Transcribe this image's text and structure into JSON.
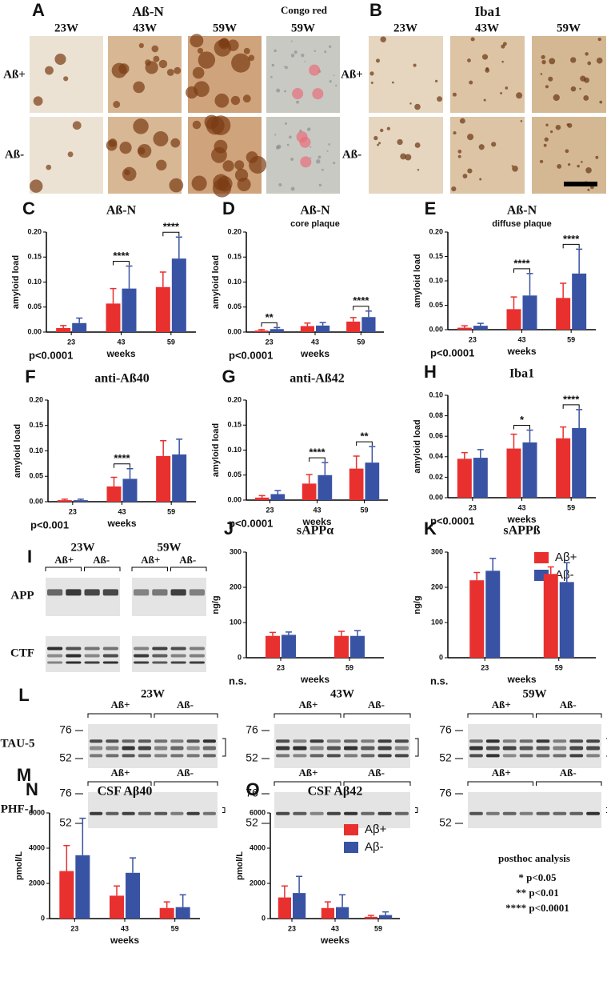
{
  "images": {
    "A": {
      "letter": "A",
      "title": "Aß-N",
      "extra": "Congo red",
      "columns": [
        "23W",
        "43W",
        "59W",
        "59W"
      ],
      "rows": [
        "Aß+",
        "Aß-"
      ]
    },
    "B": {
      "letter": "B",
      "title": "Iba1",
      "columns": [
        "23W",
        "43W",
        "59W"
      ],
      "rows": [
        "Aß+",
        "Aß-"
      ]
    },
    "I": {
      "letter": "I",
      "groups": [
        {
          "label": "23W",
          "sub": [
            "Aß+",
            "Aß-"
          ]
        },
        {
          "label": "59W",
          "sub": [
            "Aß+",
            "Aß-"
          ]
        }
      ],
      "rows": [
        "APP",
        "CTF"
      ]
    },
    "L": {
      "letter": "L",
      "row": "TAU-5",
      "blots": [
        {
          "label": "23W",
          "groups": [
            "Aß+",
            "Aß-"
          ],
          "markers": [
            "76",
            "52"
          ]
        },
        {
          "label": "43W",
          "groups": [
            "Aß+",
            "Aß-"
          ],
          "markers": [
            "76",
            "52"
          ]
        },
        {
          "label": "59W",
          "groups": [
            "Aß+",
            "Aß-"
          ],
          "markers": [
            "76",
            "52"
          ]
        }
      ]
    },
    "M": {
      "letter": "M",
      "row": "PHF-1",
      "blots": [
        {
          "groups": [
            "Aß+",
            "Aß-"
          ],
          "markers": [
            "76",
            "52"
          ]
        },
        {
          "groups": [
            "Aß+",
            "Aß-"
          ],
          "markers": [
            "76",
            "52"
          ]
        },
        {
          "groups": [
            "Aß+",
            "Aß-"
          ],
          "markers": [
            "76",
            "52"
          ]
        }
      ]
    }
  },
  "posthoc": {
    "title": "posthoc analysis",
    "lines": [
      "* p<0.05",
      "** p<0.01",
      "**** p<0.0001"
    ]
  },
  "chart_data": [
    {
      "type": "bar",
      "panel": "C",
      "title": "Aß-N",
      "ylabel": "amyloid load",
      "xlabel": "weeks",
      "note": "p<0.0001",
      "categories": [
        "23",
        "43",
        "59"
      ],
      "series": [
        {
          "name": "Aß+",
          "color": "#e8302f",
          "values": [
            0.008,
            0.057,
            0.09
          ],
          "errors": [
            0.005,
            0.03,
            0.03
          ]
        },
        {
          "name": "Aß-",
          "color": "#3953a4",
          "values": [
            0.018,
            0.087,
            0.147
          ],
          "errors": [
            0.01,
            0.045,
            0.043
          ]
        }
      ],
      "annotations": [
        {
          "x": "43",
          "text": "****"
        },
        {
          "x": "59",
          "text": "****"
        }
      ],
      "ylim": [
        0,
        0.2
      ],
      "yticks": [
        {
          "value": 0,
          "label": "0.00"
        },
        {
          "value": 0.05,
          "label": "0.05"
        },
        {
          "value": 0.1,
          "label": "0.10"
        },
        {
          "value": 0.15,
          "label": "0.15"
        },
        {
          "value": 0.2,
          "label": "0.20"
        }
      ]
    },
    {
      "type": "bar",
      "panel": "D",
      "title": "Aß-N",
      "subtitle": "core plaque",
      "ylabel": "amyloid load",
      "xlabel": "weeks",
      "note": "p<0.0001",
      "categories": [
        "23",
        "43",
        "59"
      ],
      "series": [
        {
          "name": "Aß+",
          "color": "#e8302f",
          "values": [
            0.003,
            0.012,
            0.021
          ],
          "errors": [
            0.002,
            0.006,
            0.008
          ]
        },
        {
          "name": "Aß-",
          "color": "#3953a4",
          "values": [
            0.006,
            0.013,
            0.03
          ],
          "errors": [
            0.003,
            0.006,
            0.012
          ]
        }
      ],
      "annotations": [
        {
          "x": "23",
          "text": "**"
        },
        {
          "x": "59",
          "text": "****"
        }
      ],
      "ylim": [
        0,
        0.2
      ],
      "yticks": [
        {
          "value": 0,
          "label": "0.00"
        },
        {
          "value": 0.05,
          "label": "0.05"
        },
        {
          "value": 0.1,
          "label": "0.10"
        },
        {
          "value": 0.15,
          "label": "0.15"
        },
        {
          "value": 0.2,
          "label": "0.20"
        }
      ]
    },
    {
      "type": "bar",
      "panel": "E",
      "title": "Aß-N",
      "subtitle": "diffuse plaque",
      "ylabel": "amyloid load",
      "xlabel": "weeks",
      "note": "p<0.0001",
      "categories": [
        "23",
        "43",
        "59"
      ],
      "series": [
        {
          "name": "Aß+",
          "color": "#e8302f",
          "values": [
            0.004,
            0.042,
            0.065
          ],
          "errors": [
            0.004,
            0.025,
            0.03
          ]
        },
        {
          "name": "Aß-",
          "color": "#3953a4",
          "values": [
            0.008,
            0.07,
            0.115
          ],
          "errors": [
            0.005,
            0.045,
            0.05
          ]
        }
      ],
      "annotations": [
        {
          "x": "43",
          "text": "****"
        },
        {
          "x": "59",
          "text": "****"
        }
      ],
      "ylim": [
        0,
        0.2
      ],
      "yticks": [
        {
          "value": 0,
          "label": "0.00"
        },
        {
          "value": 0.05,
          "label": "0.05"
        },
        {
          "value": 0.1,
          "label": "0.10"
        },
        {
          "value": 0.15,
          "label": "0.15"
        },
        {
          "value": 0.2,
          "label": "0.20"
        }
      ]
    },
    {
      "type": "bar",
      "panel": "F",
      "title": "anti-Aß40",
      "ylabel": "amyloid load",
      "xlabel": "weeks",
      "note": "p<0.001",
      "categories": [
        "23",
        "43",
        "59"
      ],
      "series": [
        {
          "name": "Aß+",
          "color": "#e8302f",
          "values": [
            0.003,
            0.03,
            0.09
          ],
          "errors": [
            0.002,
            0.018,
            0.03
          ]
        },
        {
          "name": "Aß-",
          "color": "#3953a4",
          "values": [
            0.003,
            0.045,
            0.093
          ],
          "errors": [
            0.002,
            0.02,
            0.03
          ]
        }
      ],
      "annotations": [
        {
          "x": "43",
          "text": "****"
        }
      ],
      "ylim": [
        0,
        0.2
      ],
      "yticks": [
        {
          "value": 0,
          "label": "0.00"
        },
        {
          "value": 0.05,
          "label": "0.05"
        },
        {
          "value": 0.1,
          "label": "0.10"
        },
        {
          "value": 0.15,
          "label": "0.15"
        },
        {
          "value": 0.2,
          "label": "0.20"
        }
      ]
    },
    {
      "type": "bar",
      "panel": "G",
      "title": "anti-Aß42",
      "ylabel": "amyloid load",
      "xlabel": "weeks",
      "note": "p<0.0001",
      "categories": [
        "23",
        "43",
        "59"
      ],
      "series": [
        {
          "name": "Aß+",
          "color": "#e8302f",
          "values": [
            0.005,
            0.033,
            0.063
          ],
          "errors": [
            0.004,
            0.018,
            0.025
          ]
        },
        {
          "name": "Aß-",
          "color": "#3953a4",
          "values": [
            0.012,
            0.05,
            0.075
          ],
          "errors": [
            0.007,
            0.025,
            0.032
          ]
        }
      ],
      "annotations": [
        {
          "x": "43",
          "text": "****"
        },
        {
          "x": "59",
          "text": "**"
        }
      ],
      "ylim": [
        0,
        0.2
      ],
      "yticks": [
        {
          "value": 0,
          "label": "0.00"
        },
        {
          "value": 0.05,
          "label": "0.05"
        },
        {
          "value": 0.1,
          "label": "0.10"
        },
        {
          "value": 0.15,
          "label": "0.15"
        },
        {
          "value": 0.2,
          "label": "0.20"
        }
      ]
    },
    {
      "type": "bar",
      "panel": "H",
      "title": "Iba1",
      "ylabel": "amyloid load",
      "xlabel": "weeks",
      "note": "p<0.0001",
      "categories": [
        "23",
        "43",
        "59"
      ],
      "series": [
        {
          "name": "Aß+",
          "color": "#e8302f",
          "values": [
            0.038,
            0.048,
            0.058
          ],
          "errors": [
            0.006,
            0.014,
            0.011
          ]
        },
        {
          "name": "Aß-",
          "color": "#3953a4",
          "values": [
            0.039,
            0.054,
            0.068
          ],
          "errors": [
            0.008,
            0.012,
            0.018
          ]
        }
      ],
      "annotations": [
        {
          "x": "43",
          "text": "*"
        },
        {
          "x": "59",
          "text": "****"
        }
      ],
      "ylim": [
        0,
        0.1
      ],
      "yticks": [
        {
          "value": 0,
          "label": "0.00"
        },
        {
          "value": 0.02,
          "label": "0.02"
        },
        {
          "value": 0.04,
          "label": "0.04"
        },
        {
          "value": 0.06,
          "label": "0.06"
        },
        {
          "value": 0.08,
          "label": "0.08"
        },
        {
          "value": 0.1,
          "label": "0.10"
        }
      ]
    },
    {
      "type": "bar",
      "panel": "J",
      "title": "sAPPα",
      "ylabel": "ng/g",
      "xlabel": "weeks",
      "note": "n.s.",
      "categories": [
        "23",
        "59"
      ],
      "legend": true,
      "series": [
        {
          "name": "Aβ+",
          "color": "#e8302f",
          "values": [
            62,
            62
          ],
          "errors": [
            10,
            13
          ]
        },
        {
          "name": "Aβ-",
          "color": "#3953a4",
          "values": [
            65,
            62
          ],
          "errors": [
            8,
            15
          ]
        }
      ],
      "ylim": [
        0,
        300
      ],
      "yticks": [
        0,
        100,
        200,
        300
      ]
    },
    {
      "type": "bar",
      "panel": "K",
      "title": "sAPPß",
      "ylabel": "ng/g",
      "xlabel": "weeks",
      "note": "n.s.",
      "categories": [
        "23",
        "59"
      ],
      "series": [
        {
          "name": "Aβ+",
          "color": "#e8302f",
          "values": [
            220,
            238
          ],
          "errors": [
            22,
            20
          ]
        },
        {
          "name": "Aβ-",
          "color": "#3953a4",
          "values": [
            247,
            215
          ],
          "errors": [
            35,
            55
          ]
        }
      ],
      "ylim": [
        0,
        300
      ],
      "yticks": [
        0,
        100,
        200,
        300
      ]
    },
    {
      "type": "bar",
      "panel": "N",
      "title": "CSF Aβ40",
      "ylabel": "pmol/L",
      "xlabel": "weeks",
      "categories": [
        "23",
        "43",
        "59"
      ],
      "series": [
        {
          "name": "Aβ+",
          "color": "#e8302f",
          "values": [
            2700,
            1300,
            600
          ],
          "errors": [
            1450,
            550,
            350
          ]
        },
        {
          "name": "Aβ-",
          "color": "#3953a4",
          "values": [
            3600,
            2600,
            650
          ],
          "errors": [
            2100,
            850,
            700
          ]
        }
      ],
      "ylim": [
        0,
        6000
      ],
      "yticks": [
        0,
        2000,
        4000,
        6000
      ]
    },
    {
      "type": "bar",
      "panel": "O",
      "title": "CSF Aβ42",
      "ylabel": "pmol/L",
      "xlabel": "weeks",
      "categories": [
        "23",
        "43",
        "59"
      ],
      "legend": true,
      "series": [
        {
          "name": "Aβ+",
          "color": "#e8302f",
          "values": [
            1200,
            600,
            100
          ],
          "errors": [
            650,
            350,
            80
          ]
        },
        {
          "name": "Aβ-",
          "color": "#3953a4",
          "values": [
            1450,
            650,
            200
          ],
          "errors": [
            950,
            700,
            180
          ]
        }
      ],
      "ylim": [
        0,
        6000
      ],
      "yticks": [
        0,
        2000,
        4000,
        6000
      ]
    }
  ]
}
